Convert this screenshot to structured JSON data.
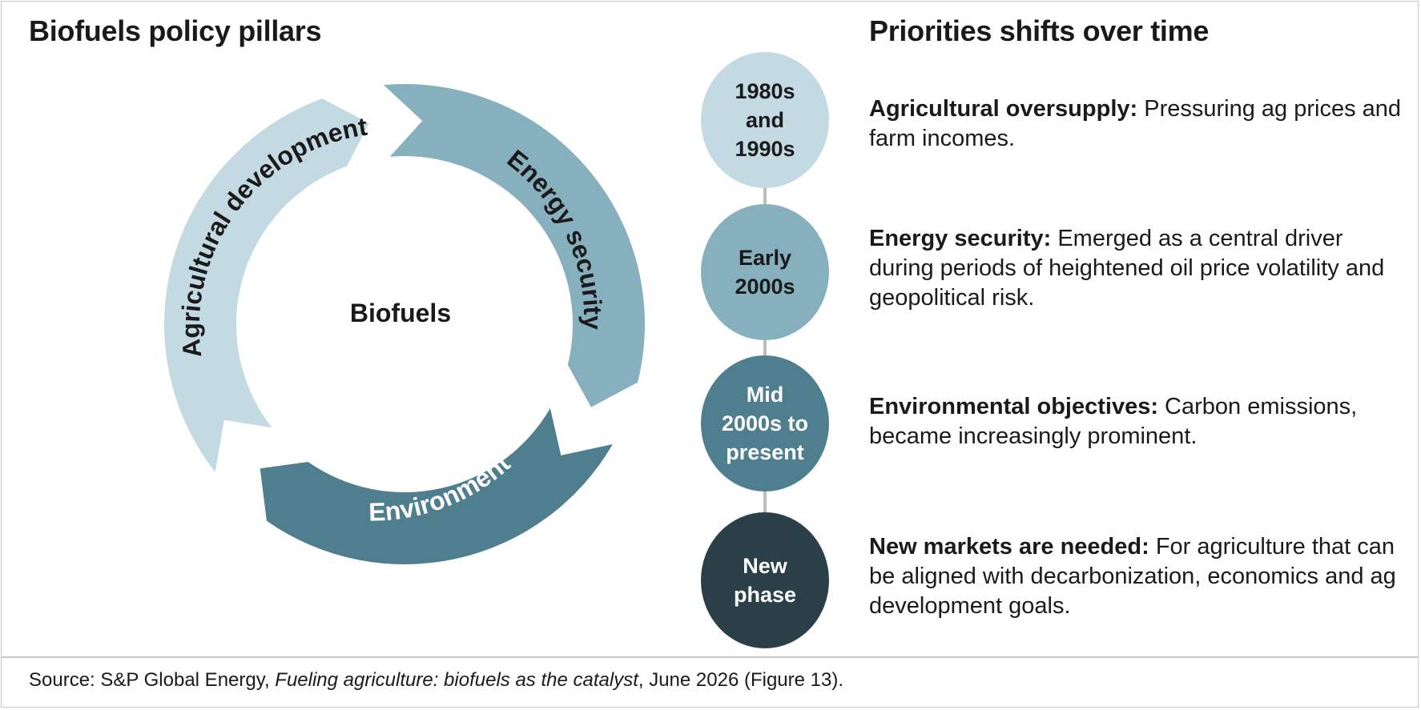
{
  "left_title": "Biofuels policy pillars",
  "right_title": "Priorities shifts over time",
  "cycle": {
    "center": "Biofuels",
    "segments": [
      {
        "label": "Agricultural development",
        "color": "#c4dae3",
        "text_color": "#1a1a1a"
      },
      {
        "label": "Energy security",
        "color": "#87b0bf",
        "text_color": "#1a1a1a"
      },
      {
        "label": "Environment",
        "color": "#4f7f8f",
        "text_color": "#ffffff"
      }
    ]
  },
  "timeline": [
    {
      "period": "1980s\nand\n1990s",
      "heading": "Agricultural oversupply:",
      "text": " Pressuring ag prices and farm incomes.",
      "color": "#c4dae3"
    },
    {
      "period": "Early\n2000s",
      "heading": "Energy security:",
      "text": " Emerged as a central driver during periods of heightened oil price volatility and geopolitical risk.",
      "color": "#87b0bf"
    },
    {
      "period": "Mid\n2000s to\npresent",
      "heading": "Environmental objectives:",
      "text": " Carbon emissions, became increasingly prominent.",
      "color": "#4f7f8f"
    },
    {
      "period": "New\nphase",
      "heading": "New markets are needed:",
      "text": " For agriculture that can be aligned with decarbonization, economics and ag development goals.",
      "color": "#2a3f48"
    }
  ],
  "source": {
    "prefix": "Source: S&P Global Energy, ",
    "italic": "Fueling agriculture: biofuels as the catalyst",
    "suffix": ", June 2026 (Figure 13)."
  }
}
